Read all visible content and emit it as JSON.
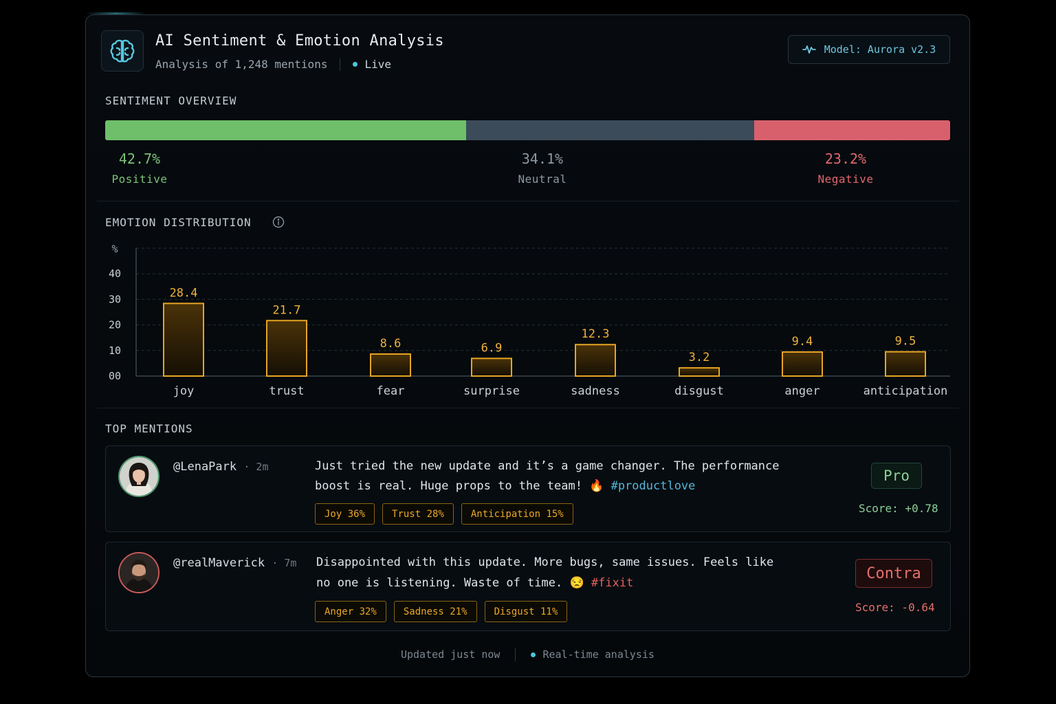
{
  "header": {
    "title": "AI Sentiment & Emotion Analysis",
    "subtitle": "Analysis of 1,248 mentions",
    "live_label": "Live",
    "model_label": "Model: Aurora v2.3"
  },
  "sentiment": {
    "section_label": "SENTIMENT OVERVIEW",
    "segments": [
      {
        "label": "Positive",
        "percent_text": "42.7%",
        "value": 42.7,
        "color": "#6fbf6a"
      },
      {
        "label": "Neutral",
        "percent_text": "34.1%",
        "value": 34.1,
        "color": "#3b4b59"
      },
      {
        "label": "Negative",
        "percent_text": "23.2%",
        "value": 23.2,
        "color": "#d8606c"
      }
    ]
  },
  "emotions": {
    "section_label": "EMOTION DISTRIBUTION",
    "info_icon": "info-circle-icon"
  },
  "chart_data": {
    "type": "bar",
    "categories": [
      "joy",
      "trust",
      "fear",
      "surprise",
      "sadness",
      "disgust",
      "anger",
      "anticipation"
    ],
    "values": [
      28.4,
      21.7,
      8.6,
      6.9,
      12.3,
      3.2,
      9.4,
      9.5
    ],
    "value_labels": [
      "28.4",
      "21.7",
      "8.6",
      "6.9",
      "12.3",
      "3.2",
      "9.4",
      "9.5"
    ],
    "ylabel": "%",
    "yticks": [
      "00",
      "10",
      "20",
      "30",
      "40"
    ],
    "ylim": [
      0,
      50
    ],
    "grid": true,
    "bar_color": "#e6a523"
  },
  "mentions": {
    "section_label": "TOP MENTIONS",
    "items": [
      {
        "handle": "@LenaPark",
        "time": "· 2m",
        "text_line1": "Just tried the new update and it’s a game changer. The performance",
        "text_line2": "boost is real. Huge props to the team! 🔥",
        "hashtag": "#productlove",
        "tags": [
          "Joy  36%",
          "Trust  28%",
          "Anticipation  15%"
        ],
        "stance": "Pro",
        "score": "Score: +0.78",
        "accent": "#7fc08a"
      },
      {
        "handle": "@realMaverick",
        "time": "· 7m",
        "text_line1": "Disappointed with this update. More bugs, same issues. Feels like",
        "text_line2": "no one is listening. Waste of time. 😒",
        "hashtag": "#fixit",
        "tags": [
          "Anger  32%",
          "Sadness  21%",
          "Disgust  11%"
        ],
        "stance": "Contra",
        "score": "Score: -0.64",
        "accent": "#e0625f"
      }
    ]
  },
  "footer": {
    "updated": "Updated just now",
    "realtime": "Real-time analysis"
  }
}
